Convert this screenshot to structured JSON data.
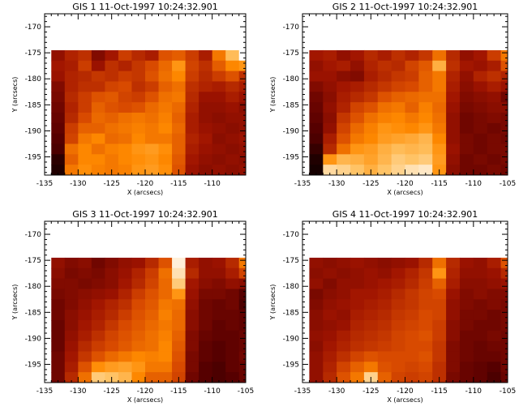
{
  "figure": {
    "background": "#ffffff",
    "axis_color": "#000000",
    "colormap": [
      "#000000",
      "#5a0000",
      "#a01400",
      "#d84a00",
      "#ff8a00",
      "#ffc060",
      "#ffffff"
    ]
  },
  "chart_data": [
    {
      "type": "heatmap",
      "title": "GIS 1 11-Oct-1997 10:24:32.901",
      "xlabel": "X (arcsecs)",
      "ylabel": "Y (arcsecs)",
      "xlim": [
        -135,
        -105
      ],
      "ylim": [
        -198.5,
        -167.5
      ],
      "x_ticks": [
        -135,
        -130,
        -125,
        -120,
        -115,
        -110
      ],
      "y_ticks": [
        -170,
        -175,
        -180,
        -185,
        -190,
        -195
      ],
      "cell_size_arcsec": 2,
      "x_start": -134,
      "y_start": -198.5,
      "rows_top_to_bottom": [
        [
          0.3,
          0.38,
          0.42,
          0.26,
          0.34,
          0.46,
          0.4,
          0.36,
          0.52,
          0.55,
          0.46,
          0.36,
          0.62,
          0.82,
          1.0,
          1.0
        ],
        [
          0.34,
          0.36,
          0.46,
          0.32,
          0.42,
          0.38,
          0.44,
          0.5,
          0.58,
          0.7,
          0.48,
          0.42,
          0.55,
          0.66,
          0.7,
          0.74
        ],
        [
          0.32,
          0.38,
          0.4,
          0.44,
          0.42,
          0.46,
          0.44,
          0.52,
          0.6,
          0.66,
          0.46,
          0.4,
          0.46,
          0.52,
          0.42,
          0.38
        ],
        [
          0.26,
          0.38,
          0.42,
          0.42,
          0.48,
          0.5,
          0.42,
          0.46,
          0.56,
          0.6,
          0.42,
          0.38,
          0.36,
          0.4,
          0.36,
          0.32
        ],
        [
          0.24,
          0.4,
          0.46,
          0.52,
          0.54,
          0.48,
          0.46,
          0.52,
          0.6,
          0.62,
          0.4,
          0.32,
          0.32,
          0.36,
          0.32,
          0.3
        ],
        [
          0.22,
          0.38,
          0.46,
          0.56,
          0.52,
          0.5,
          0.52,
          0.58,
          0.62,
          0.58,
          0.38,
          0.3,
          0.3,
          0.32,
          0.28,
          0.3
        ],
        [
          0.2,
          0.4,
          0.5,
          0.58,
          0.56,
          0.6,
          0.62,
          0.6,
          0.64,
          0.56,
          0.36,
          0.3,
          0.28,
          0.3,
          0.3,
          0.28
        ],
        [
          0.18,
          0.46,
          0.56,
          0.56,
          0.6,
          0.62,
          0.64,
          0.62,
          0.66,
          0.58,
          0.36,
          0.32,
          0.3,
          0.28,
          0.3,
          0.3
        ],
        [
          0.16,
          0.48,
          0.62,
          0.66,
          0.58,
          0.6,
          0.66,
          0.62,
          0.62,
          0.56,
          0.38,
          0.34,
          0.28,
          0.3,
          0.32,
          0.3
        ],
        [
          0.14,
          0.6,
          0.66,
          0.6,
          0.64,
          0.66,
          0.7,
          0.72,
          0.68,
          0.56,
          0.36,
          0.32,
          0.3,
          0.28,
          0.3,
          0.32
        ],
        [
          0.08,
          0.56,
          0.66,
          0.66,
          0.62,
          0.66,
          0.68,
          0.7,
          0.66,
          0.54,
          0.34,
          0.3,
          0.28,
          0.3,
          0.28,
          0.3
        ],
        [
          0.06,
          0.62,
          0.68,
          0.64,
          0.62,
          0.64,
          0.7,
          0.72,
          0.68,
          0.52,
          0.32,
          0.28,
          0.3,
          0.28,
          0.3,
          0.3
        ]
      ]
    },
    {
      "type": "heatmap",
      "title": "GIS 2 11-Oct-1997 10:24:32.901",
      "xlabel": "X (arcsecs)",
      "ylabel": "Y (arcsecs)",
      "xlim": [
        -135,
        -105
      ],
      "ylim": [
        -198.5,
        -167.5
      ],
      "x_ticks": [
        -135,
        -130,
        -125,
        -120,
        -115,
        -110,
        -105
      ],
      "y_ticks": [
        -170,
        -175,
        -180,
        -185,
        -190,
        -195
      ],
      "cell_size_arcsec": 2,
      "x_start": -134,
      "y_start": -198.5,
      "rows_top_to_bottom": [
        [
          0.34,
          0.36,
          0.3,
          0.34,
          0.4,
          0.36,
          0.42,
          0.38,
          0.44,
          0.6,
          0.4,
          0.3,
          0.34,
          0.46,
          0.62,
          0.96
        ],
        [
          0.3,
          0.34,
          0.36,
          0.3,
          0.38,
          0.42,
          0.4,
          0.48,
          0.54,
          0.78,
          0.42,
          0.34,
          0.32,
          0.36,
          0.52,
          0.62
        ],
        [
          0.32,
          0.32,
          0.28,
          0.26,
          0.36,
          0.4,
          0.44,
          0.46,
          0.56,
          0.62,
          0.38,
          0.3,
          0.38,
          0.42,
          0.38,
          0.34
        ],
        [
          0.26,
          0.3,
          0.34,
          0.36,
          0.4,
          0.44,
          0.48,
          0.5,
          0.56,
          0.62,
          0.36,
          0.28,
          0.32,
          0.36,
          0.32,
          0.3
        ],
        [
          0.22,
          0.28,
          0.36,
          0.4,
          0.44,
          0.52,
          0.56,
          0.58,
          0.6,
          0.6,
          0.34,
          0.26,
          0.28,
          0.3,
          0.22,
          0.26
        ],
        [
          0.2,
          0.3,
          0.38,
          0.48,
          0.52,
          0.6,
          0.62,
          0.56,
          0.64,
          0.58,
          0.32,
          0.24,
          0.26,
          0.28,
          0.28,
          0.24
        ],
        [
          0.18,
          0.28,
          0.44,
          0.52,
          0.6,
          0.64,
          0.66,
          0.62,
          0.66,
          0.6,
          0.3,
          0.22,
          0.24,
          0.26,
          0.24,
          0.22
        ],
        [
          0.16,
          0.3,
          0.48,
          0.58,
          0.64,
          0.7,
          0.68,
          0.66,
          0.7,
          0.62,
          0.3,
          0.22,
          0.24,
          0.22,
          0.24,
          0.22
        ],
        [
          0.14,
          0.36,
          0.52,
          0.62,
          0.66,
          0.72,
          0.74,
          0.76,
          0.8,
          0.66,
          0.3,
          0.24,
          0.22,
          0.24,
          0.22,
          0.24
        ],
        [
          0.1,
          0.4,
          0.6,
          0.7,
          0.72,
          0.78,
          0.82,
          0.8,
          0.82,
          0.7,
          0.32,
          0.24,
          0.22,
          0.24,
          0.24,
          0.22
        ],
        [
          0.06,
          0.7,
          0.8,
          0.78,
          0.74,
          0.8,
          0.86,
          0.84,
          0.86,
          0.72,
          0.3,
          0.22,
          0.24,
          0.22,
          0.24,
          0.22
        ],
        [
          0.04,
          0.9,
          0.88,
          0.84,
          0.78,
          0.84,
          0.88,
          0.92,
          0.94,
          0.7,
          0.28,
          0.22,
          0.22,
          0.24,
          0.22,
          0.24
        ]
      ]
    },
    {
      "type": "heatmap",
      "title": "GIS 3 11-Oct-1997 10:24:32.901",
      "xlabel": "X (arcsecs)",
      "ylabel": "Y (arcsecs)",
      "xlim": [
        -135,
        -105
      ],
      "ylim": [
        -198.5,
        -167.5
      ],
      "x_ticks": [
        -135,
        -130,
        -125,
        -120,
        -115,
        -110,
        -105
      ],
      "y_ticks": [
        -170,
        -175,
        -180,
        -185,
        -190,
        -195
      ],
      "cell_size_arcsec": 2,
      "x_start": -134,
      "y_start": -198.5,
      "rows_top_to_bottom": [
        [
          0.3,
          0.26,
          0.28,
          0.22,
          0.26,
          0.3,
          0.32,
          0.4,
          0.52,
          0.96,
          0.36,
          0.3,
          0.32,
          0.4,
          0.62,
          0.72
        ],
        [
          0.28,
          0.24,
          0.26,
          0.24,
          0.28,
          0.32,
          0.38,
          0.46,
          0.6,
          0.92,
          0.4,
          0.3,
          0.3,
          0.36,
          0.48,
          0.56
        ],
        [
          0.26,
          0.26,
          0.24,
          0.26,
          0.28,
          0.34,
          0.4,
          0.48,
          0.58,
          0.86,
          0.34,
          0.28,
          0.26,
          0.3,
          0.28,
          0.24
        ],
        [
          0.24,
          0.26,
          0.28,
          0.3,
          0.32,
          0.38,
          0.46,
          0.52,
          0.58,
          0.7,
          0.32,
          0.24,
          0.24,
          0.22,
          0.16,
          0.18
        ],
        [
          0.22,
          0.26,
          0.3,
          0.34,
          0.38,
          0.42,
          0.5,
          0.54,
          0.62,
          0.6,
          0.3,
          0.22,
          0.2,
          0.22,
          0.14,
          0.18
        ],
        [
          0.22,
          0.28,
          0.32,
          0.36,
          0.4,
          0.46,
          0.52,
          0.56,
          0.64,
          0.58,
          0.28,
          0.22,
          0.2,
          0.2,
          0.18,
          0.2
        ],
        [
          0.2,
          0.28,
          0.34,
          0.38,
          0.44,
          0.5,
          0.54,
          0.58,
          0.62,
          0.58,
          0.28,
          0.22,
          0.18,
          0.2,
          0.18,
          0.2
        ],
        [
          0.2,
          0.3,
          0.36,
          0.42,
          0.48,
          0.52,
          0.56,
          0.6,
          0.64,
          0.56,
          0.26,
          0.2,
          0.18,
          0.18,
          0.2,
          0.2
        ],
        [
          0.2,
          0.32,
          0.4,
          0.46,
          0.5,
          0.54,
          0.58,
          0.6,
          0.66,
          0.54,
          0.26,
          0.18,
          0.16,
          0.18,
          0.2,
          0.22
        ],
        [
          0.22,
          0.34,
          0.44,
          0.52,
          0.58,
          0.62,
          0.66,
          0.64,
          0.66,
          0.52,
          0.24,
          0.18,
          0.16,
          0.18,
          0.22,
          0.22
        ],
        [
          0.22,
          0.36,
          0.52,
          0.68,
          0.72,
          0.74,
          0.7,
          0.62,
          0.62,
          0.5,
          0.24,
          0.16,
          0.14,
          0.18,
          0.2,
          0.22
        ],
        [
          0.22,
          0.4,
          0.6,
          0.86,
          0.84,
          0.8,
          0.66,
          0.56,
          0.56,
          0.48,
          0.22,
          0.16,
          0.14,
          0.16,
          0.2,
          0.22
        ]
      ]
    },
    {
      "type": "heatmap",
      "title": "GIS 4 11-Oct-1997 10:24:32.901",
      "xlabel": "X (arcsecs)",
      "ylabel": "Y (arcsecs)",
      "xlim": [
        -135,
        -105
      ],
      "ylim": [
        -198.5,
        -167.5
      ],
      "x_ticks": [
        -135,
        -130,
        -125,
        -120,
        -115,
        -110,
        -105
      ],
      "y_ticks": [
        -170,
        -175,
        -180,
        -185,
        -190,
        -195
      ],
      "cell_size_arcsec": 2,
      "x_start": -134,
      "y_start": -198.5,
      "rows_top_to_bottom": [
        [
          0.3,
          0.28,
          0.3,
          0.32,
          0.3,
          0.28,
          0.3,
          0.32,
          0.4,
          0.6,
          0.4,
          0.32,
          0.3,
          0.36,
          0.52,
          0.62
        ],
        [
          0.28,
          0.3,
          0.28,
          0.3,
          0.32,
          0.3,
          0.34,
          0.38,
          0.44,
          0.7,
          0.38,
          0.3,
          0.3,
          0.32,
          0.4,
          0.46
        ],
        [
          0.3,
          0.26,
          0.3,
          0.3,
          0.32,
          0.34,
          0.36,
          0.4,
          0.46,
          0.56,
          0.36,
          0.28,
          0.28,
          0.3,
          0.32,
          0.3
        ],
        [
          0.24,
          0.28,
          0.3,
          0.34,
          0.34,
          0.36,
          0.4,
          0.44,
          0.48,
          0.5,
          0.32,
          0.26,
          0.28,
          0.26,
          0.26,
          0.28
        ],
        [
          0.26,
          0.3,
          0.32,
          0.34,
          0.36,
          0.38,
          0.42,
          0.44,
          0.48,
          0.48,
          0.3,
          0.26,
          0.24,
          0.26,
          0.24,
          0.26
        ],
        [
          0.28,
          0.32,
          0.3,
          0.36,
          0.38,
          0.4,
          0.44,
          0.46,
          0.5,
          0.48,
          0.3,
          0.24,
          0.24,
          0.22,
          0.24,
          0.24
        ],
        [
          0.28,
          0.3,
          0.32,
          0.38,
          0.4,
          0.42,
          0.46,
          0.48,
          0.5,
          0.46,
          0.28,
          0.24,
          0.22,
          0.22,
          0.24,
          0.26
        ],
        [
          0.3,
          0.32,
          0.36,
          0.4,
          0.42,
          0.44,
          0.48,
          0.5,
          0.52,
          0.46,
          0.28,
          0.22,
          0.22,
          0.24,
          0.22,
          0.24
        ],
        [
          0.28,
          0.34,
          0.38,
          0.42,
          0.44,
          0.46,
          0.48,
          0.5,
          0.5,
          0.44,
          0.26,
          0.22,
          0.2,
          0.22,
          0.22,
          0.24
        ],
        [
          0.3,
          0.36,
          0.42,
          0.48,
          0.52,
          0.5,
          0.5,
          0.5,
          0.52,
          0.44,
          0.26,
          0.22,
          0.2,
          0.2,
          0.22,
          0.22
        ],
        [
          0.3,
          0.38,
          0.48,
          0.56,
          0.62,
          0.52,
          0.5,
          0.48,
          0.5,
          0.42,
          0.26,
          0.2,
          0.18,
          0.16,
          0.22,
          0.22
        ],
        [
          0.3,
          0.4,
          0.52,
          0.62,
          0.88,
          0.56,
          0.48,
          0.46,
          0.48,
          0.42,
          0.24,
          0.2,
          0.18,
          0.14,
          0.2,
          0.22
        ]
      ]
    }
  ]
}
